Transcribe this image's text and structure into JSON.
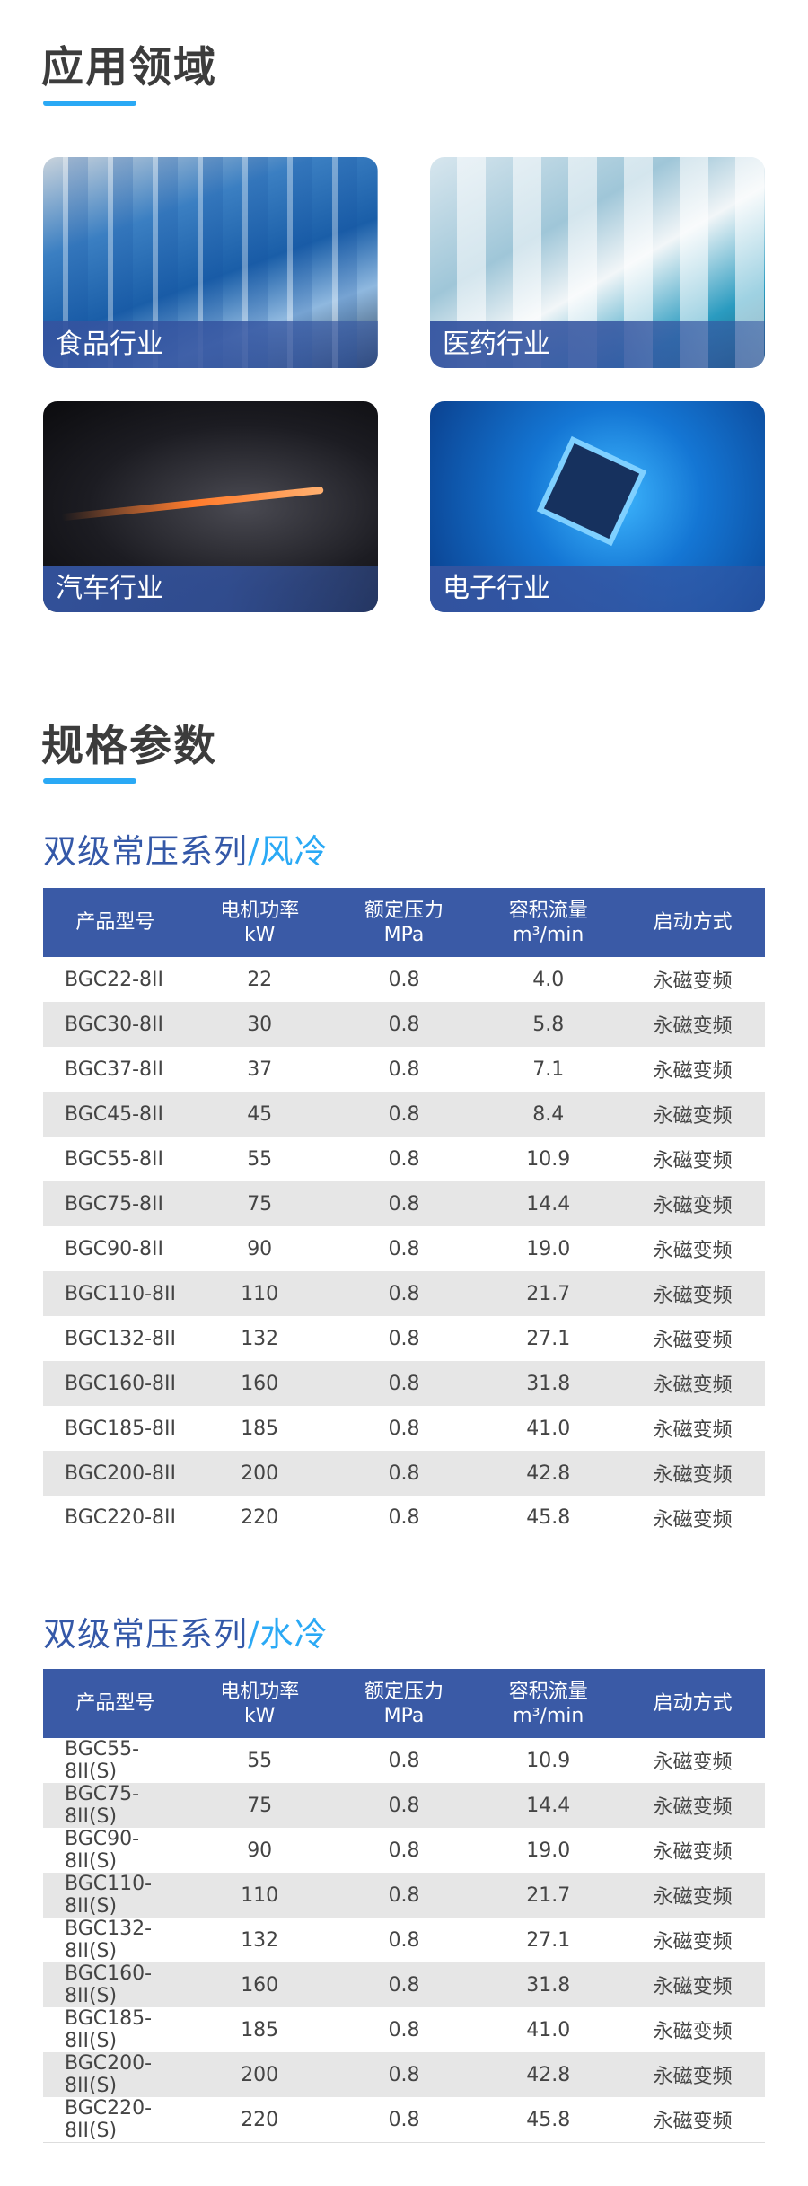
{
  "applications": {
    "title": "应用领域",
    "cards": [
      {
        "label": "食品行业"
      },
      {
        "label": "医药行业"
      },
      {
        "label": "汽车行业"
      },
      {
        "label": "电子行业"
      }
    ]
  },
  "specs": {
    "title": "规格参数",
    "headers": [
      {
        "line1": "产品型号",
        "line2": ""
      },
      {
        "line1": "电机功率",
        "line2": "kW"
      },
      {
        "line1": "额定压力",
        "line2": "MPa"
      },
      {
        "line1": "容积流量",
        "line2": "m³/min"
      },
      {
        "line1": "启动方式",
        "line2": ""
      }
    ],
    "tables": [
      {
        "series": "双级常压系列",
        "variant": "/风冷",
        "rows": [
          [
            "BGC22-8II",
            "22",
            "0.8",
            "4.0",
            "永磁变频"
          ],
          [
            "BGC30-8II",
            "30",
            "0.8",
            "5.8",
            "永磁变频"
          ],
          [
            "BGC37-8II",
            "37",
            "0.8",
            "7.1",
            "永磁变频"
          ],
          [
            "BGC45-8II",
            "45",
            "0.8",
            "8.4",
            "永磁变频"
          ],
          [
            "BGC55-8II",
            "55",
            "0.8",
            "10.9",
            "永磁变频"
          ],
          [
            "BGC75-8II",
            "75",
            "0.8",
            "14.4",
            "永磁变频"
          ],
          [
            "BGC90-8II",
            "90",
            "0.8",
            "19.0",
            "永磁变频"
          ],
          [
            "BGC110-8II",
            "110",
            "0.8",
            "21.7",
            "永磁变频"
          ],
          [
            "BGC132-8II",
            "132",
            "0.8",
            "27.1",
            "永磁变频"
          ],
          [
            "BGC160-8II",
            "160",
            "0.8",
            "31.8",
            "永磁变频"
          ],
          [
            "BGC185-8II",
            "185",
            "0.8",
            "41.0",
            "永磁变频"
          ],
          [
            "BGC200-8II",
            "200",
            "0.8",
            "42.8",
            "永磁变频"
          ],
          [
            "BGC220-8II",
            "220",
            "0.8",
            "45.8",
            "永磁变频"
          ]
        ]
      },
      {
        "series": "双级常压系列",
        "variant": "/水冷",
        "rows": [
          [
            "BGC55-8II(S)",
            "55",
            "0.8",
            "10.9",
            "永磁变频"
          ],
          [
            "BGC75-8II(S)",
            "75",
            "0.8",
            "14.4",
            "永磁变频"
          ],
          [
            "BGC90-8II(S)",
            "90",
            "0.8",
            "19.0",
            "永磁变频"
          ],
          [
            "BGC110-8II(S)",
            "110",
            "0.8",
            "21.7",
            "永磁变频"
          ],
          [
            "BGC132-8II(S)",
            "132",
            "0.8",
            "27.1",
            "永磁变频"
          ],
          [
            "BGC160-8II(S)",
            "160",
            "0.8",
            "31.8",
            "永磁变频"
          ],
          [
            "BGC185-8II(S)",
            "185",
            "0.8",
            "41.0",
            "永磁变频"
          ],
          [
            "BGC200-8II(S)",
            "200",
            "0.8",
            "42.8",
            "永磁变频"
          ],
          [
            "BGC220-8II(S)",
            "220",
            "0.8",
            "45.8",
            "永磁变频"
          ]
        ]
      }
    ]
  },
  "colors": {
    "header": "#3a5aa6",
    "accent": "#2aa9f5",
    "series_title": "#3458a8",
    "row_alt": "#e6e6e6"
  }
}
